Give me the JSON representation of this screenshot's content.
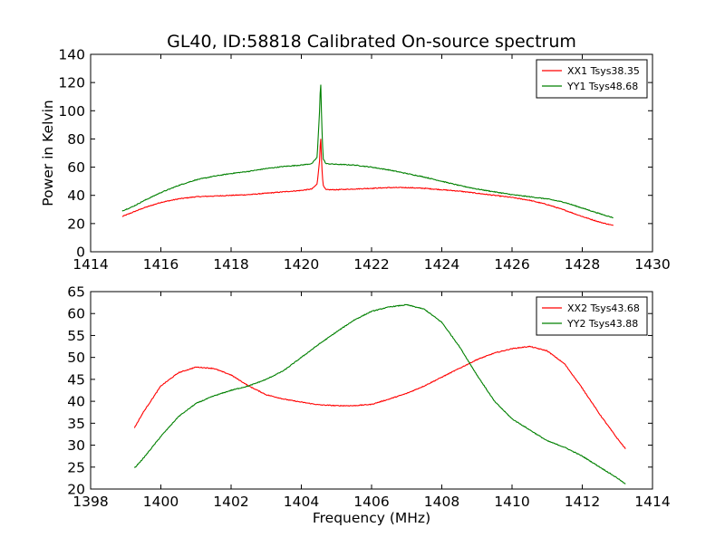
{
  "chart_data": [
    {
      "type": "line",
      "title": "GL40, ID:58818 Calibrated On-source spectrum",
      "xlabel": "",
      "ylabel": "Power in Kelvin",
      "xlim": [
        1414,
        1430
      ],
      "ylim": [
        0,
        140
      ],
      "xticks": [
        "1414",
        "1416",
        "1418",
        "1420",
        "1422",
        "1424",
        "1426",
        "1428",
        "1430"
      ],
      "yticks": [
        "0",
        "20",
        "40",
        "60",
        "80",
        "100",
        "120",
        "140"
      ],
      "grid": false,
      "legend_position": "top-right",
      "series": [
        {
          "name": "XX1 Tsys38.35",
          "color": "#ff0000",
          "x": [
            1414.9,
            1415.2,
            1415.5,
            1416.0,
            1416.5,
            1417.0,
            1417.5,
            1418.0,
            1418.5,
            1419.0,
            1419.5,
            1420.0,
            1420.3,
            1420.45,
            1420.52,
            1420.55,
            1420.58,
            1420.62,
            1420.7,
            1421.0,
            1421.5,
            1422.0,
            1422.5,
            1423.0,
            1423.5,
            1424.0,
            1424.5,
            1425.0,
            1425.5,
            1426.0,
            1426.5,
            1427.0,
            1427.5,
            1428.0,
            1428.5,
            1428.9
          ],
          "y": [
            25,
            28,
            31,
            35,
            37.5,
            39,
            39.5,
            40,
            40.5,
            41.5,
            42.5,
            43.5,
            44.5,
            48,
            65,
            83,
            62,
            47,
            44,
            44,
            44.5,
            45,
            45.5,
            45.5,
            45,
            44,
            43,
            41.5,
            40,
            38.5,
            36.5,
            33.5,
            29.5,
            25,
            21,
            18.5
          ]
        },
        {
          "name": "YY1 Tsys48.68",
          "color": "#008000",
          "x": [
            1414.9,
            1415.2,
            1415.5,
            1416.0,
            1416.5,
            1417.0,
            1417.5,
            1418.0,
            1418.5,
            1419.0,
            1419.5,
            1420.0,
            1420.3,
            1420.45,
            1420.52,
            1420.55,
            1420.58,
            1420.62,
            1420.7,
            1421.0,
            1421.5,
            1422.0,
            1422.5,
            1423.0,
            1423.5,
            1424.0,
            1424.5,
            1425.0,
            1425.5,
            1426.0,
            1426.5,
            1427.0,
            1427.5,
            1428.0,
            1428.5,
            1428.9
          ],
          "y": [
            29,
            32,
            36,
            42,
            47,
            51,
            53.5,
            55.5,
            57,
            59,
            60.5,
            61.5,
            62.5,
            67,
            100,
            123,
            92,
            66,
            62.5,
            62,
            61.5,
            60,
            58,
            55.5,
            53,
            50,
            47,
            44.5,
            42.5,
            40.5,
            39,
            37.5,
            35,
            31,
            27,
            24
          ]
        }
      ]
    },
    {
      "type": "line",
      "title": "",
      "xlabel": "Frequency (MHz)",
      "ylabel": "",
      "xlim": [
        1398,
        1414
      ],
      "ylim": [
        20,
        65
      ],
      "xticks": [
        "1398",
        "1400",
        "1402",
        "1404",
        "1406",
        "1408",
        "1410",
        "1412",
        "1414"
      ],
      "yticks": [
        "20",
        "25",
        "30",
        "35",
        "40",
        "45",
        "50",
        "55",
        "60",
        "65"
      ],
      "grid": false,
      "legend_position": "top-right",
      "series": [
        {
          "name": "XX2 Tsys43.68",
          "color": "#ff0000",
          "x": [
            1399.25,
            1399.5,
            1400.0,
            1400.5,
            1401.0,
            1401.5,
            1402.0,
            1402.5,
            1403.0,
            1403.5,
            1404.0,
            1404.5,
            1405.0,
            1405.5,
            1406.0,
            1406.5,
            1407.0,
            1407.5,
            1408.0,
            1408.5,
            1409.0,
            1409.5,
            1410.0,
            1410.5,
            1411.0,
            1411.5,
            1412.0,
            1412.5,
            1413.0,
            1413.25
          ],
          "y": [
            34,
            37.5,
            43.5,
            46.5,
            47.8,
            47.5,
            46,
            43.5,
            41.5,
            40.5,
            39.8,
            39.2,
            39,
            39,
            39.3,
            40.5,
            41.8,
            43.5,
            45.5,
            47.5,
            49.5,
            51,
            52,
            52.5,
            51.5,
            48.5,
            43,
            37,
            31.5,
            29
          ]
        },
        {
          "name": "YY2 Tsys43.88",
          "color": "#008000",
          "x": [
            1399.25,
            1399.5,
            1400.0,
            1400.5,
            1401.0,
            1401.5,
            1402.0,
            1402.5,
            1403.0,
            1403.5,
            1404.0,
            1404.5,
            1405.0,
            1405.5,
            1406.0,
            1406.5,
            1407.0,
            1407.5,
            1408.0,
            1408.5,
            1409.0,
            1409.5,
            1410.0,
            1410.5,
            1411.0,
            1411.5,
            1412.0,
            1412.5,
            1413.0,
            1413.25
          ],
          "y": [
            24.8,
            27,
            32,
            36.5,
            39.5,
            41.2,
            42.5,
            43.5,
            45,
            47,
            50,
            53,
            55.8,
            58.5,
            60.5,
            61.5,
            62,
            61,
            58,
            52.5,
            46,
            40,
            36,
            33.5,
            31,
            29.5,
            27.5,
            25,
            22.5,
            21
          ]
        }
      ]
    }
  ]
}
